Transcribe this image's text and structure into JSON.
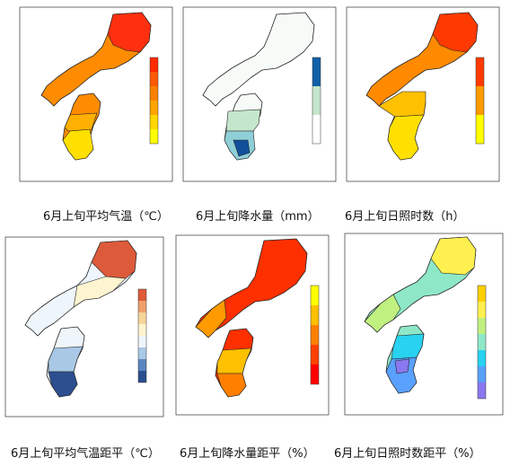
{
  "captions": [
    "6月上旬平均气温（℃）",
    "6月上旬降水量（mm）",
    "6月上旬日照时数（h）",
    "6月上旬平均气温距平（℃）",
    "6月上旬降水量距平（%）",
    "6月上旬日照时数距平（%）"
  ],
  "colors": {
    "temp": [
      "#ffff00",
      "#ffd700",
      "#ffa500",
      "#ff8000",
      "#ff5a00",
      "#ff2a00"
    ],
    "precip": [
      "#ffffff",
      "#eaf6ea",
      "#c4e6cc",
      "#8fcfd8",
      "#3a86c0",
      "#10509a"
    ],
    "sun": [
      "#ffff00",
      "#ffd000",
      "#ffa000",
      "#ff7a00",
      "#ff4a00",
      "#ff2000"
    ],
    "temp_anom": [
      "#2c4f8f",
      "#5a85bf",
      "#a9c8e6",
      "#eef5fb",
      "#fff4d0",
      "#f6d59a",
      "#ef9f6a",
      "#dd5a3a"
    ],
    "precip_anom": [
      "#ff0000",
      "#ff4000",
      "#ff8000",
      "#ffc000",
      "#ffff00"
    ],
    "sun_anom": [
      "#8a78f0",
      "#5aa0ff",
      "#28d2f0",
      "#8ee8c8",
      "#c0f080",
      "#fff050",
      "#ffd000"
    ]
  }
}
